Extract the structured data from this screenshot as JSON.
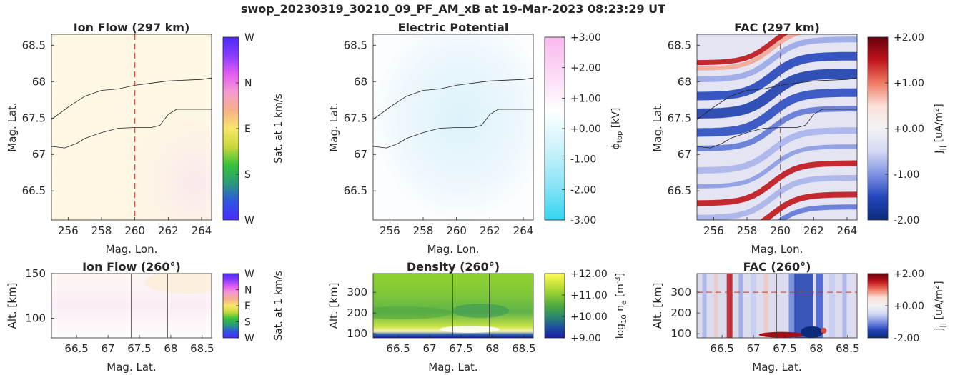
{
  "suptitle": "swop_20230319_30210_09_PF_AM_xB at 19-Mar-2023 08:23:29 UT",
  "colors": {
    "axis": "#262626",
    "marker_line": "#c0392b",
    "boundary_line": "#222222",
    "flow_bg": "#fdf7e3",
    "potential_bg": "#eaf6fb",
    "density_bg": "#6cbf3c"
  },
  "chart_data": [
    {
      "type": "heatmap",
      "title": "Ion Flow (297 km)",
      "xlabel": "Mag. Lon.",
      "ylabel": "Mag. Lat.",
      "xlim": [
        255,
        264.6
      ],
      "ylim": [
        66.1,
        68.65
      ],
      "xticks": [
        256,
        258,
        260,
        262,
        264
      ],
      "yticks": [
        66.5,
        67,
        67.5,
        68,
        68.5
      ],
      "xticklabels": [
        "256",
        "258",
        "260",
        "262",
        "264"
      ],
      "yticklabels": [
        "66.5",
        "67",
        "67.5",
        "68",
        "68.5"
      ],
      "marker_x": 260,
      "colorbar": {
        "label": "Sat. at 1 km/s",
        "ticklabels": [
          "W",
          "N",
          "E",
          "S",
          "W"
        ],
        "colors": [
          "#4a2cff",
          "#2f55e0",
          "#2b9a7c",
          "#36c23a",
          "#c9d83a",
          "#f8e86a",
          "#f7b08a",
          "#f59bd0",
          "#e35cf2",
          "#8a3bff",
          "#4a2cff"
        ]
      },
      "boundaries": [
        {
          "x": [
            255,
            256,
            257,
            258,
            259,
            260,
            261,
            262,
            263,
            264,
            264.6
          ],
          "y": [
            67.48,
            67.65,
            67.8,
            67.88,
            67.9,
            67.95,
            67.98,
            68.01,
            68.02,
            68.03,
            68.05
          ]
        },
        {
          "x": [
            255,
            255.8,
            256.5,
            257,
            258,
            259,
            260,
            261,
            261.5,
            262,
            262.5,
            263,
            264,
            264.6
          ],
          "y": [
            67.11,
            67.09,
            67.15,
            67.22,
            67.3,
            67.36,
            67.37,
            67.37,
            67.4,
            67.55,
            67.62,
            67.62,
            67.62,
            67.62
          ]
        }
      ]
    },
    {
      "type": "heatmap",
      "title": "Electric Potential",
      "xlabel": "Mag. Lon.",
      "ylabel": "Mag. Lat.",
      "xlim": [
        255,
        264.6
      ],
      "ylim": [
        66.1,
        68.65
      ],
      "xticks": [
        256,
        258,
        260,
        262,
        264
      ],
      "yticks": [
        66.5,
        67,
        67.5,
        68,
        68.5
      ],
      "xticklabels": [
        "256",
        "258",
        "260",
        "262",
        "264"
      ],
      "yticklabels": [
        "66.5",
        "67",
        "67.5",
        "68",
        "68.5"
      ],
      "colorbar": {
        "label": "ϕ top [kV]",
        "label_main": "ϕ",
        "label_sub": "top",
        "label_unit": " [kV]",
        "ticks": [
          3,
          2,
          1,
          0,
          -1,
          -2,
          -3
        ],
        "ticklabels": [
          "+3.00",
          "+2.00",
          "+1.00",
          "+0.00",
          "-1.00",
          "-2.00",
          "-3.00"
        ],
        "colors": [
          "#f9b8ef",
          "#fbd9f5",
          "#ffffff",
          "#cff3fb",
          "#8ee4f7",
          "#34d5f2"
        ]
      },
      "boundaries": [
        {
          "x": [
            255,
            256,
            257,
            258,
            259,
            260,
            261,
            262,
            263,
            264,
            264.6
          ],
          "y": [
            67.48,
            67.65,
            67.8,
            67.88,
            67.9,
            67.95,
            67.98,
            68.01,
            68.02,
            68.03,
            68.05
          ]
        },
        {
          "x": [
            255,
            255.8,
            256.5,
            257,
            258,
            259,
            260,
            261,
            261.5,
            262,
            262.5,
            263,
            264,
            264.6
          ],
          "y": [
            67.11,
            67.09,
            67.15,
            67.22,
            67.3,
            67.36,
            67.37,
            67.37,
            67.4,
            67.55,
            67.62,
            67.62,
            67.62,
            67.62
          ]
        }
      ]
    },
    {
      "type": "heatmap",
      "title": "FAC (297 km)",
      "xlabel": "Mag. Lon.",
      "ylabel": "Mag. Lat.",
      "xlim": [
        255,
        264.6
      ],
      "ylim": [
        66.1,
        68.65
      ],
      "xticks": [
        256,
        258,
        260,
        262,
        264
      ],
      "yticks": [
        66.5,
        67,
        67.5,
        68,
        68.5
      ],
      "xticklabels": [
        "256",
        "258",
        "260",
        "262",
        "264"
      ],
      "yticklabels": [
        "66.5",
        "67",
        "67.5",
        "68",
        "68.5"
      ],
      "marker_x": 260,
      "colorbar": {
        "label": "J|| [uA/m2]",
        "label_main": "J",
        "label_sub": "||",
        "label_unit": " [uA/m",
        "label_sup": "2",
        "label_end": "]",
        "ticks": [
          2,
          1,
          0,
          -1,
          -2
        ],
        "ticklabels": [
          "+2.00",
          "+1.00",
          "+0.00",
          "-1.00",
          "-2.00"
        ],
        "colors": [
          "#67000d",
          "#c0141b",
          "#f07a64",
          "#fbe0d8",
          "#f3f3f5",
          "#d3d8f3",
          "#7f93e4",
          "#2346bd",
          "#0c2b7a"
        ]
      },
      "boundaries": [
        {
          "x": [
            255,
            256,
            257,
            258,
            259,
            260,
            261,
            262,
            263,
            264,
            264.6
          ],
          "y": [
            67.48,
            67.65,
            67.8,
            67.88,
            67.9,
            67.95,
            67.98,
            68.01,
            68.02,
            68.03,
            68.05
          ]
        },
        {
          "x": [
            255,
            255.8,
            256.5,
            257,
            258,
            259,
            260,
            261,
            261.5,
            262,
            262.5,
            263,
            264,
            264.6
          ],
          "y": [
            67.11,
            67.09,
            67.15,
            67.22,
            67.3,
            67.36,
            67.37,
            67.37,
            67.4,
            67.55,
            67.62,
            67.62,
            67.62,
            67.62
          ]
        }
      ]
    },
    {
      "type": "heatmap",
      "title": "Ion Flow (260°)",
      "xlabel": "Mag. Lat.",
      "ylabel": "Alt. [km]",
      "xlim": [
        66.1,
        68.65
      ],
      "ylim": [
        78,
        150
      ],
      "xticks": [
        66.5,
        67,
        67.5,
        68,
        68.5
      ],
      "yticks": [
        100,
        150
      ],
      "xticklabels": [
        "66.5",
        "67",
        "67.5",
        "68",
        "68.5"
      ],
      "yticklabels": [
        "100",
        "150"
      ],
      "marker_x": [
        67.37,
        67.95
      ],
      "colorbar": {
        "label": "Sat. at 1 km/s",
        "ticklabels": [
          "W",
          "N",
          "E",
          "S",
          "W"
        ],
        "colors": [
          "#4a2cff",
          "#2f55e0",
          "#2b9a7c",
          "#36c23a",
          "#c9d83a",
          "#f8e86a",
          "#f7b08a",
          "#f59bd0",
          "#e35cf2",
          "#8a3bff",
          "#4a2cff"
        ]
      }
    },
    {
      "type": "heatmap",
      "title": "Density (260°)",
      "xlabel": "Mag. Lat.",
      "ylabel": "Alt. [km]",
      "xlim": [
        66.1,
        68.65
      ],
      "ylim": [
        80,
        390
      ],
      "xticks": [
        66.5,
        67,
        67.5,
        68,
        68.5
      ],
      "yticks": [
        100,
        200,
        300
      ],
      "xticklabels": [
        "66.5",
        "67",
        "67.5",
        "68",
        "68.5"
      ],
      "yticklabels": [
        "100",
        "200",
        "300"
      ],
      "marker_x": [
        67.37,
        67.95
      ],
      "colorbar": {
        "label": "log10 ne [m-3]",
        "label_main": "log",
        "label_sub": "10",
        "label_mid": " n",
        "label_sub2": "e",
        "label_unit": " [m",
        "label_sup": "-3",
        "label_end": "]",
        "ticks": [
          12,
          11,
          10,
          9
        ],
        "ticklabels": [
          "+12.00",
          "+11.00",
          "+10.00",
          "+9.00"
        ],
        "colors": [
          "#fdfd56",
          "#c9e23a",
          "#8ccb32",
          "#4fa83f",
          "#2a8a6a",
          "#1d4fa0",
          "#1a1fa6"
        ]
      }
    },
    {
      "type": "heatmap",
      "title": "FAC (260°)",
      "xlabel": "Mag. Lat.",
      "ylabel": "Alt. [km]",
      "xlim": [
        66.1,
        68.65
      ],
      "ylim": [
        80,
        390
      ],
      "xticks": [
        66.5,
        67,
        67.5,
        68,
        68.5
      ],
      "yticks": [
        100,
        200,
        300
      ],
      "xticklabels": [
        "66.5",
        "67",
        "67.5",
        "68",
        "68.5"
      ],
      "yticklabels": [
        "100",
        "200",
        "300"
      ],
      "marker_x": [
        67.37,
        67.95
      ],
      "marker_y": 300,
      "colorbar": {
        "label": "j|| [uA/m2]",
        "label_main": "j",
        "label_sub": "||",
        "label_unit": " [uA/m",
        "label_sup": "2",
        "label_end": "]",
        "ticks": [
          2,
          0,
          -2
        ],
        "ticklabels": [
          "+2.00",
          "+0.00",
          "-2.00"
        ],
        "colors": [
          "#67000d",
          "#c0141b",
          "#f07a64",
          "#fbe0d8",
          "#f3f3f5",
          "#d3d8f3",
          "#7f93e4",
          "#2346bd",
          "#0c2b7a"
        ]
      }
    }
  ]
}
